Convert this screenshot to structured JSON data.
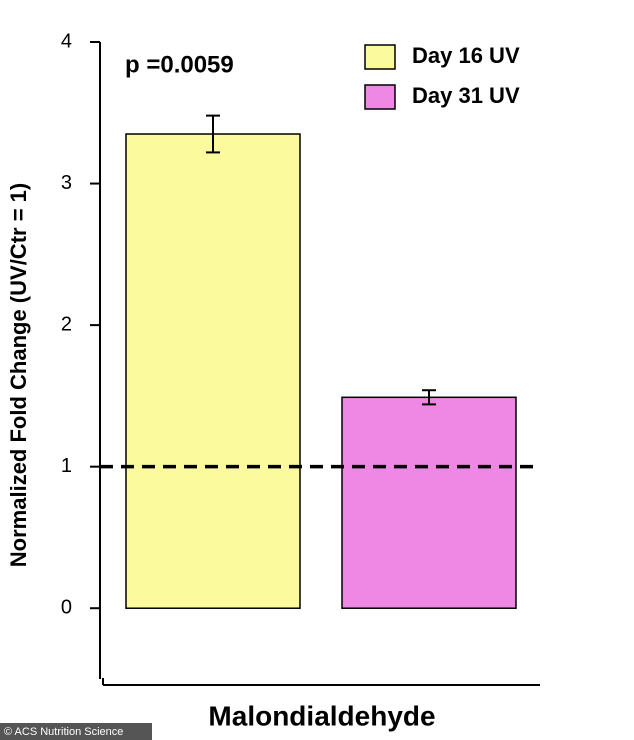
{
  "chart_data": {
    "type": "bar",
    "annotation": "p =0.0059",
    "y_label": "Normalized Fold Change (UV/Ctr = 1)",
    "x_label": "Malondialdehyde",
    "categories": [
      "Malondialdehyde"
    ],
    "series": [
      {
        "name": "Day 16 UV",
        "color": "#fbfb9d",
        "values": [
          3.35
        ],
        "errors": [
          0.13
        ]
      },
      {
        "name": "Day 31 UV",
        "color": "#ee88e4",
        "values": [
          1.49
        ],
        "errors": [
          0.05
        ]
      }
    ],
    "hline": 1,
    "ylim": [
      -0.5,
      4
    ],
    "yticks": [
      0,
      1,
      2,
      3,
      4
    ],
    "legend": "upper right",
    "credit": "© ACS Nutrition Science"
  }
}
